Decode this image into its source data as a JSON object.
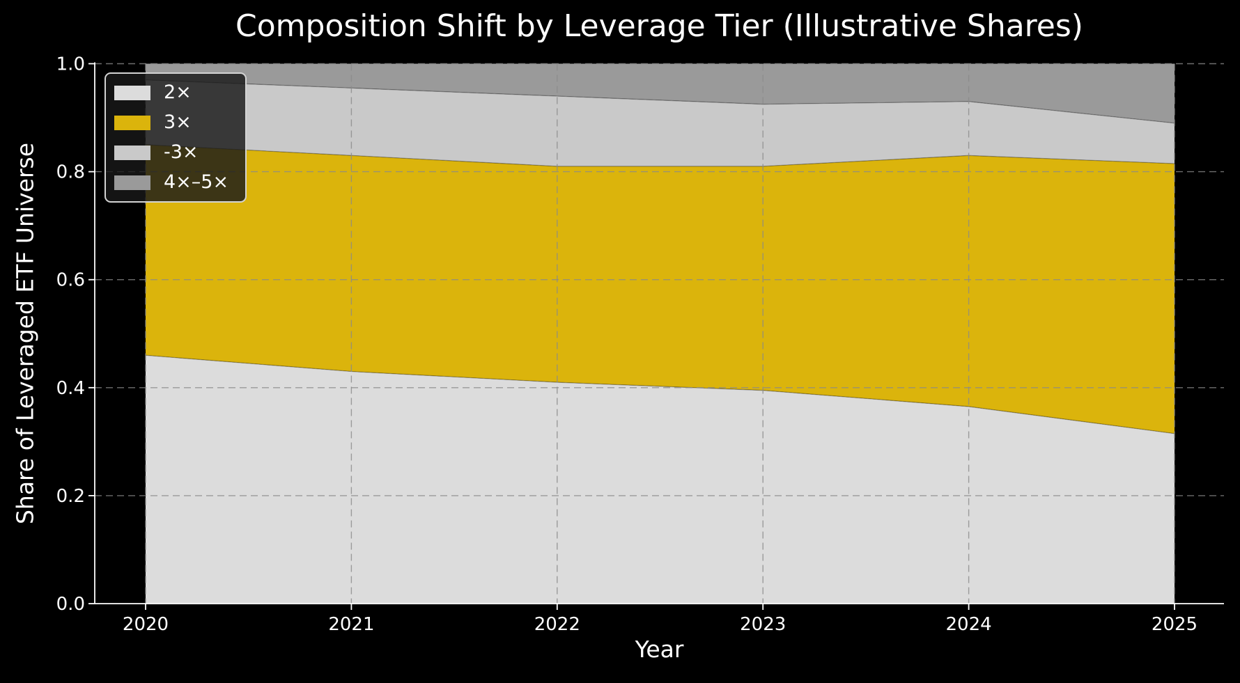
{
  "figure": {
    "background_color": "#000000",
    "text_color": "#ffffff",
    "grid_color": "#8a8a8a",
    "spine_color": "#ffffff"
  },
  "chart_data": {
    "type": "area",
    "stacked": true,
    "normalized": true,
    "title": "Composition Shift by Leverage Tier (Illustrative Shares)",
    "xlabel": "Year",
    "ylabel": "Share of Leveraged ETF Universe",
    "x": [
      2020,
      2021,
      2022,
      2023,
      2024,
      2025
    ],
    "xtick_labels": [
      "2020",
      "2021",
      "2022",
      "2023",
      "2024",
      "2025"
    ],
    "yticks": [
      0.0,
      0.2,
      0.4,
      0.6,
      0.8,
      1.0
    ],
    "ytick_labels": [
      "0.0",
      "0.2",
      "0.4",
      "0.6",
      "0.8",
      "1.0"
    ],
    "ylim": [
      0.0,
      1.0
    ],
    "grid": true,
    "grid_style": "dashed",
    "legend_position": "upper-left",
    "series": [
      {
        "name": "2×",
        "color": "#dcdcdc",
        "values": [
          0.46,
          0.43,
          0.41,
          0.395,
          0.365,
          0.315
        ]
      },
      {
        "name": "3×",
        "color": "#dbb40c",
        "values": [
          0.39,
          0.4,
          0.4,
          0.415,
          0.465,
          0.5
        ]
      },
      {
        "name": "-3×",
        "color": "#c9c9c9",
        "values": [
          0.12,
          0.125,
          0.13,
          0.115,
          0.1,
          0.075
        ]
      },
      {
        "name": "4×–5×",
        "color": "#9a9a9a",
        "values": [
          0.03,
          0.045,
          0.06,
          0.075,
          0.07,
          0.11
        ]
      }
    ]
  }
}
